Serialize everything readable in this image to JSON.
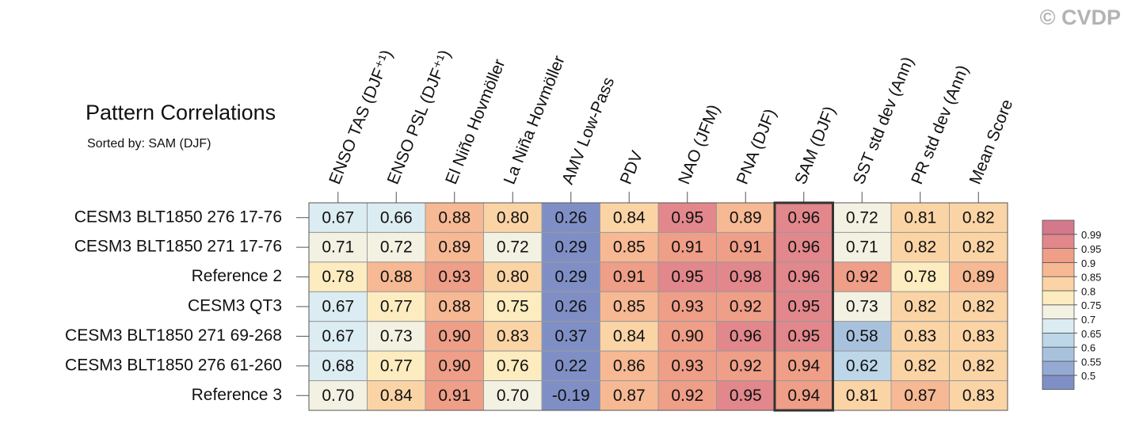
{
  "chart_data": {
    "type": "heatmap",
    "title": "Pattern Correlations",
    "subtitle": "Sorted by: SAM (DJF)",
    "watermark": "© CVDP",
    "columns": [
      "ENSO TAS (DJF⁺¹)",
      "ENSO PSL (DJF⁺¹)",
      "El Niño Hovmöller",
      "La Niña Hovmöller",
      "AMV Low-Pass",
      "PDV",
      "NAO (JFM)",
      "PNA (DJF)",
      "SAM (DJF)",
      "SST std dev (Ann)",
      "PR std dev (Ann)",
      "Mean Score"
    ],
    "rows": [
      "CESM3 BLT1850 276 17-76",
      "CESM3 BLT1850 271 17-76",
      "Reference 2",
      "CESM3 QT3",
      "CESM3 BLT1850 271 69-268",
      "CESM3 BLT1850 276 61-260",
      "Reference 3"
    ],
    "values": [
      [
        0.67,
        0.66,
        0.88,
        0.8,
        0.26,
        0.84,
        0.95,
        0.89,
        0.96,
        0.72,
        0.81,
        0.82
      ],
      [
        0.71,
        0.72,
        0.89,
        0.72,
        0.29,
        0.85,
        0.91,
        0.91,
        0.96,
        0.71,
        0.82,
        0.82
      ],
      [
        0.78,
        0.88,
        0.93,
        0.8,
        0.29,
        0.91,
        0.95,
        0.98,
        0.96,
        0.92,
        0.78,
        0.89
      ],
      [
        0.67,
        0.77,
        0.88,
        0.75,
        0.26,
        0.85,
        0.93,
        0.92,
        0.95,
        0.73,
        0.82,
        0.82
      ],
      [
        0.67,
        0.73,
        0.9,
        0.83,
        0.37,
        0.84,
        0.9,
        0.96,
        0.95,
        0.58,
        0.83,
        0.83
      ],
      [
        0.68,
        0.77,
        0.9,
        0.76,
        0.22,
        0.86,
        0.93,
        0.92,
        0.94,
        0.62,
        0.82,
        0.82
      ],
      [
        0.7,
        0.84,
        0.91,
        0.7,
        -0.19,
        0.87,
        0.92,
        0.95,
        0.94,
        0.81,
        0.87,
        0.83
      ]
    ],
    "value_labels": [
      [
        "0.67",
        "0.66",
        "0.88",
        "0.80",
        "0.26",
        "0.84",
        "0.95",
        "0.89",
        "0.96",
        "0.72",
        "0.81",
        "0.82"
      ],
      [
        "0.71",
        "0.72",
        "0.89",
        "0.72",
        "0.29",
        "0.85",
        "0.91",
        "0.91",
        "0.96",
        "0.71",
        "0.82",
        "0.82"
      ],
      [
        "0.78",
        "0.88",
        "0.93",
        "0.80",
        "0.29",
        "0.91",
        "0.95",
        "0.98",
        "0.96",
        "0.92",
        "0.78",
        "0.89"
      ],
      [
        "0.67",
        "0.77",
        "0.88",
        "0.75",
        "0.26",
        "0.85",
        "0.93",
        "0.92",
        "0.95",
        "0.73",
        "0.82",
        "0.82"
      ],
      [
        "0.67",
        "0.73",
        "0.90",
        "0.83",
        "0.37",
        "0.84",
        "0.90",
        "0.96",
        "0.95",
        "0.58",
        "0.83",
        "0.83"
      ],
      [
        "0.68",
        "0.77",
        "0.90",
        "0.76",
        "0.22",
        "0.86",
        "0.93",
        "0.92",
        "0.94",
        "0.62",
        "0.82",
        "0.82"
      ],
      [
        "0.70",
        "0.84",
        "0.91",
        "0.70",
        "-0.19",
        "0.87",
        "0.92",
        "0.95",
        "0.94",
        "0.81",
        "0.87",
        "0.83"
      ]
    ],
    "highlight_column": 8,
    "colorbar": {
      "levels": [
        0.5,
        0.55,
        0.6,
        0.65,
        0.7,
        0.75,
        0.8,
        0.85,
        0.9,
        0.95,
        0.99
      ],
      "colors": [
        "#7f8fc6",
        "#94aad2",
        "#a8c2de",
        "#bdd7e8",
        "#dbecf2",
        "#f3f1e2",
        "#fcecbf",
        "#fbd4a6",
        "#f6b993",
        "#ef9e87",
        "#e2878b",
        "#d4788b"
      ]
    }
  }
}
